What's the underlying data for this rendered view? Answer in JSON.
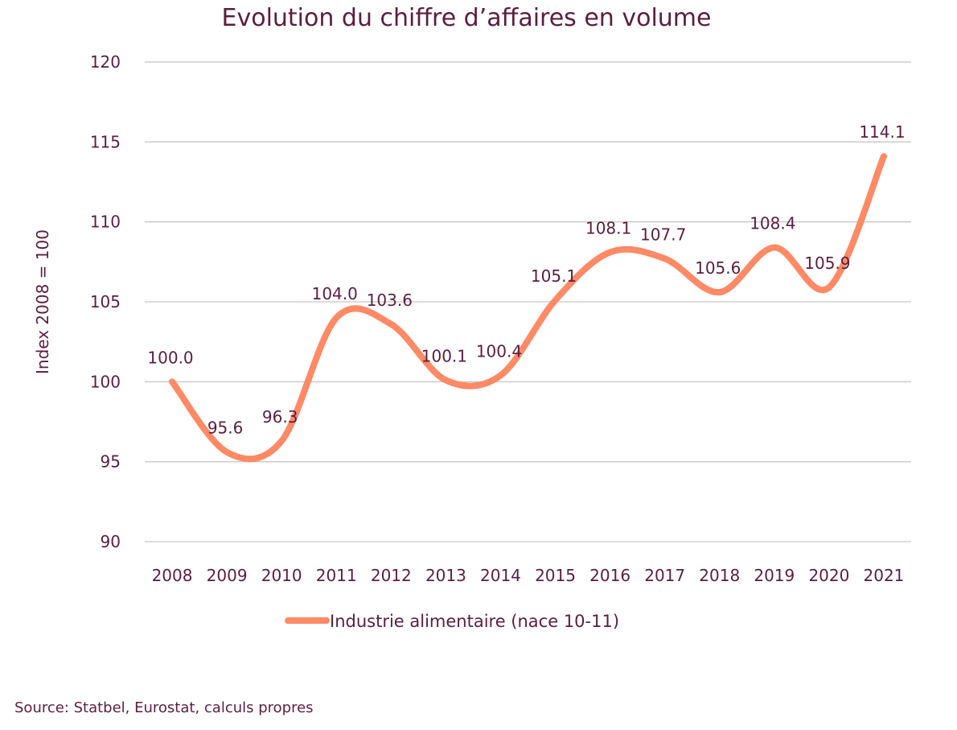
{
  "chart_data": {
    "type": "line",
    "title": "Evolution du chiffre d’affaires en volume",
    "xlabel": "",
    "ylabel": "Index 2008 = 100",
    "categories": [
      "2008",
      "2009",
      "2010",
      "2011",
      "2012",
      "2013",
      "2014",
      "2015",
      "2016",
      "2017",
      "2018",
      "2019",
      "2020",
      "2021"
    ],
    "series": [
      {
        "name": "Industrie alimentaire (nace 10-11)",
        "color": "#ff8a65",
        "values": [
          100.0,
          95.6,
          96.3,
          104.0,
          103.6,
          100.1,
          100.4,
          105.1,
          108.1,
          107.7,
          105.6,
          108.4,
          105.9,
          114.1
        ],
        "labels": [
          "100.0",
          "95.6",
          "96.3",
          "104.0",
          "103.6",
          "100.1",
          "100.4",
          "105.1",
          "108.1",
          "107.7",
          "105.6",
          "108.4",
          "105.9",
          "114.1"
        ],
        "smooth": true
      }
    ],
    "ylim": [
      90,
      120
    ],
    "yticks": [
      "90",
      "95",
      "100",
      "105",
      "110",
      "115",
      "120"
    ],
    "grid": true,
    "legend_position": "bottom",
    "text_color": "#5b1e3d",
    "grid_color": "#c8c8c8"
  },
  "source": "Source: Statbel, Eurostat, calculs propres"
}
